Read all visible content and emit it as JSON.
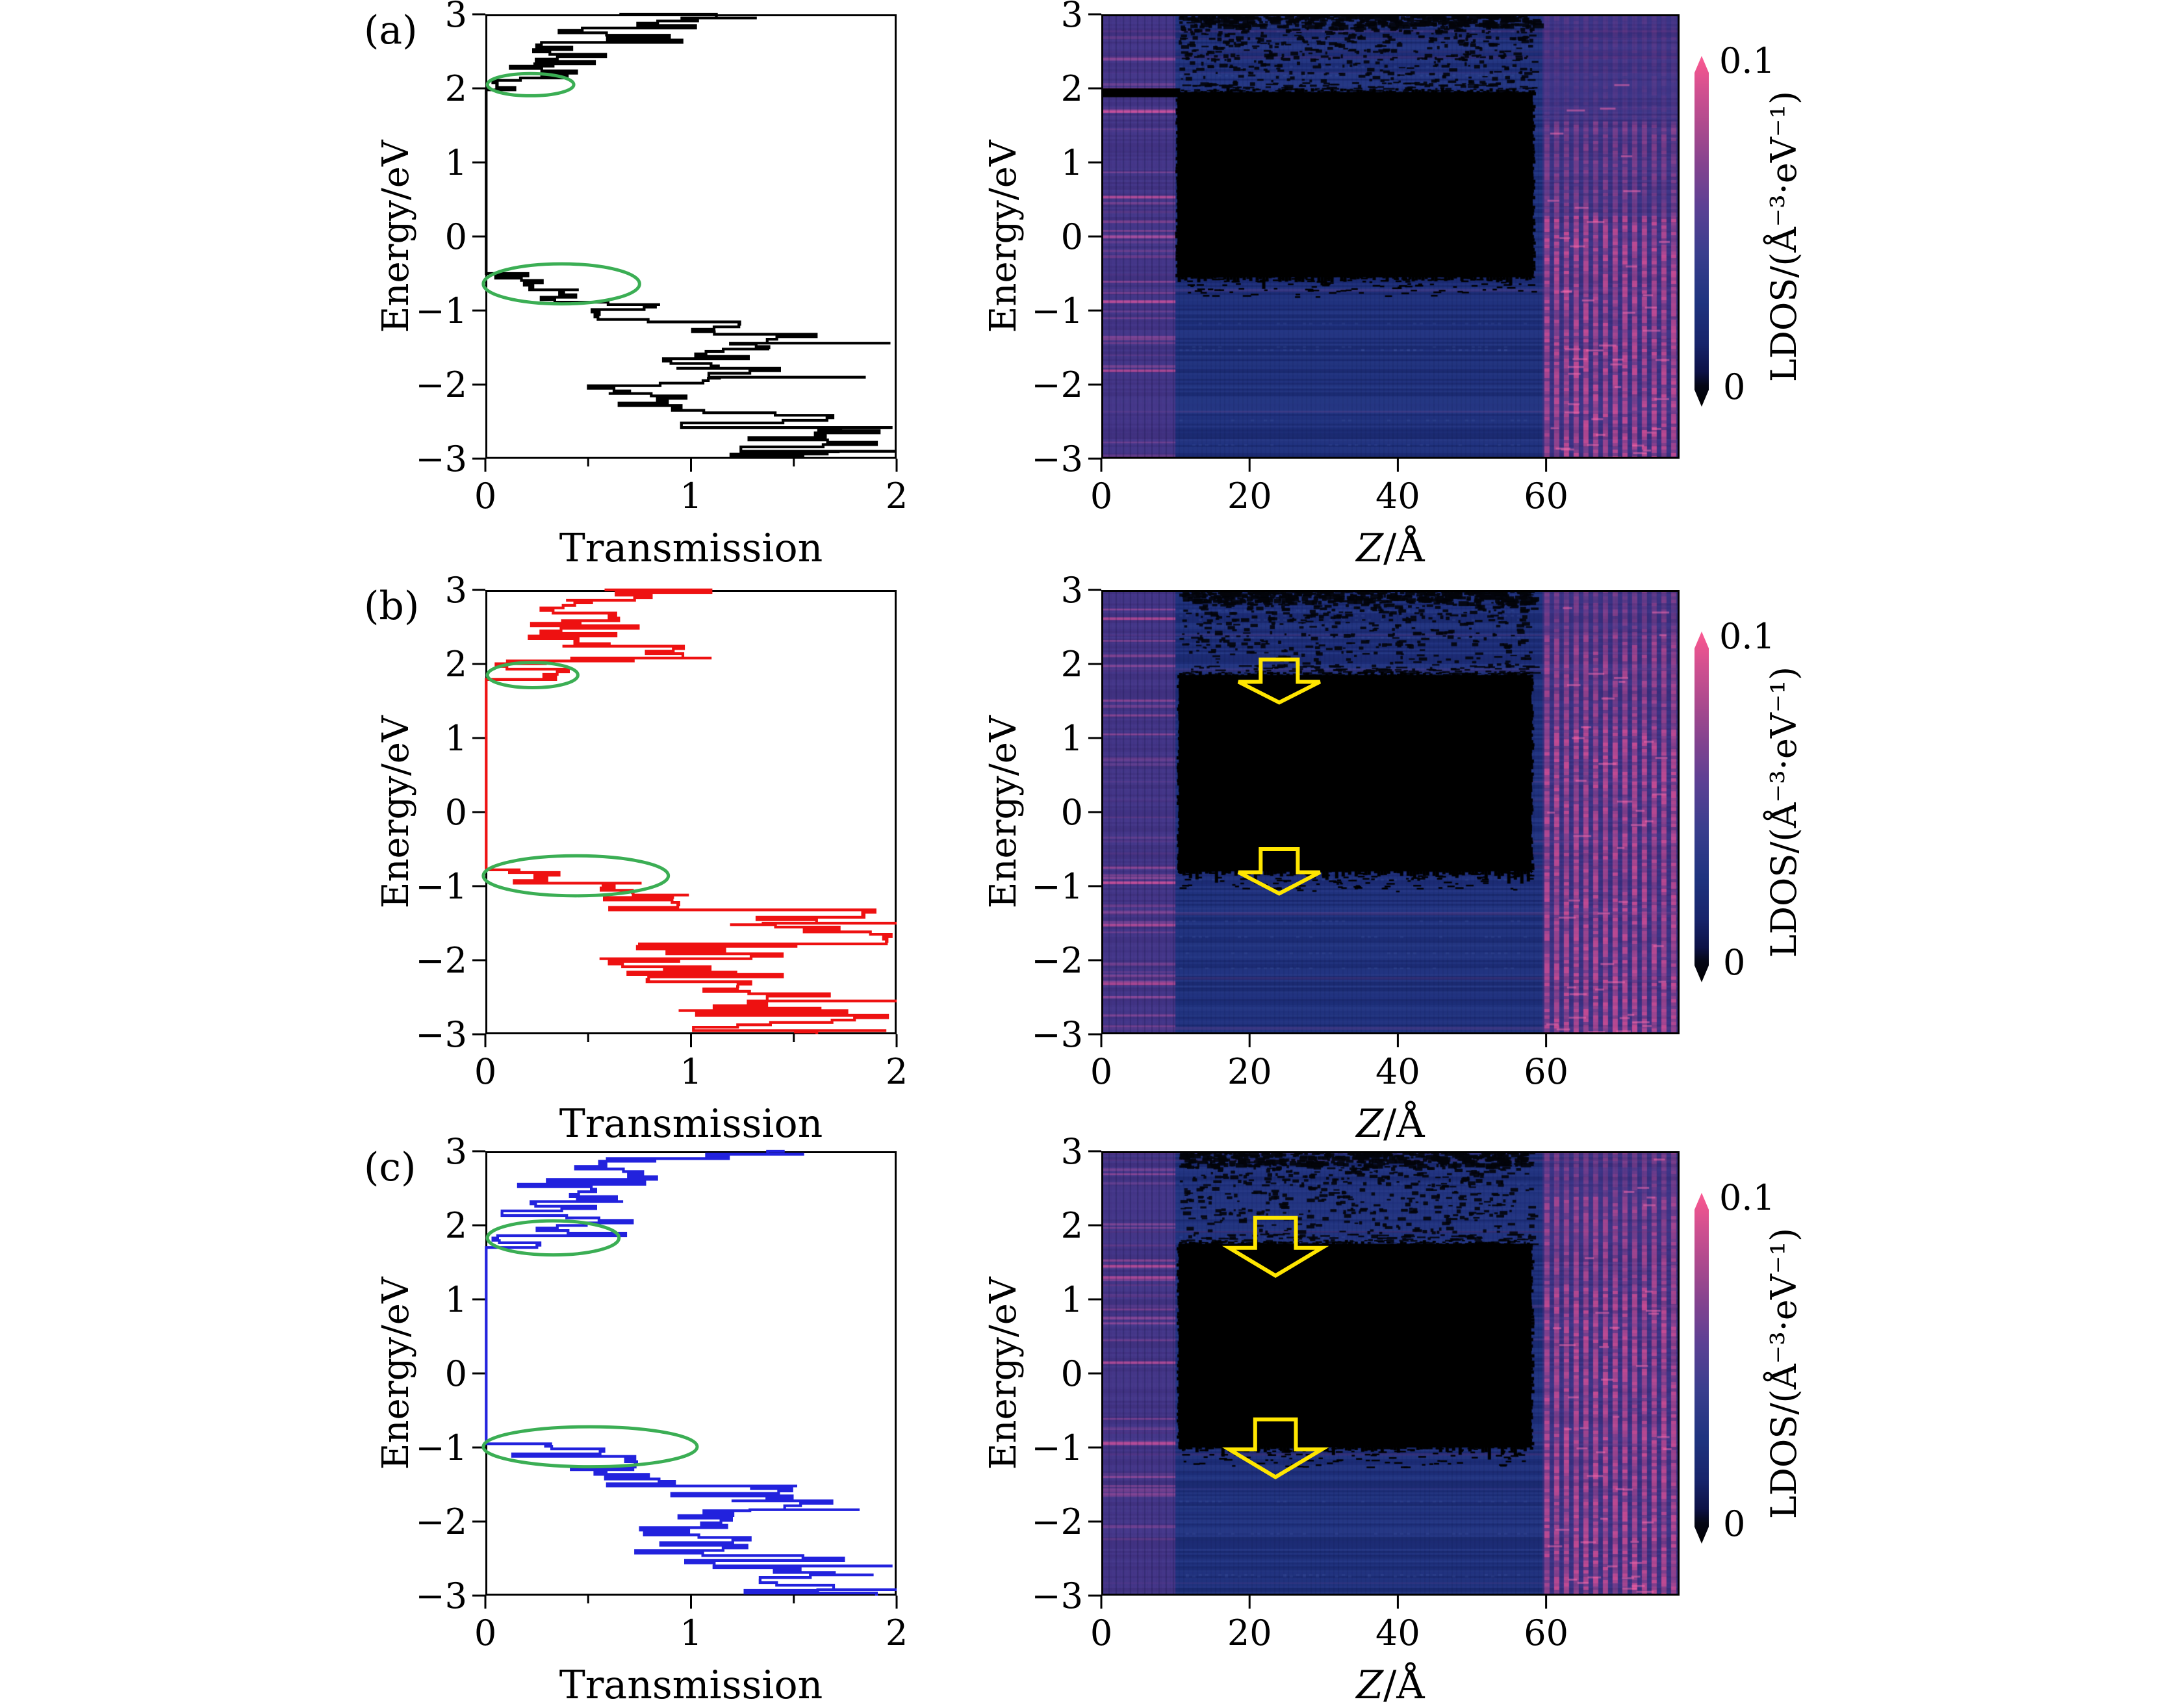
{
  "panel_labels": [
    "(a)",
    "(b)",
    "(c)"
  ],
  "colorbar": {
    "max": "0.1",
    "min": "0",
    "label": "LDOS/(Å⁻³·eV⁻¹)"
  },
  "colors": {
    "curve_black": "#000000",
    "curve_red": "#ee1111",
    "curve_blue": "#2222dd",
    "ellipse_green": "#3bae54",
    "arrow_yellow": "#ffe600",
    "heat_base": "#1e2f7b",
    "heat_dark": "#0a1148",
    "heat_light": "#5a78c8",
    "heat_pink": "#d9559b",
    "heat_pink_bright": "#ef6aa8",
    "heat_purple": "#7c4a97",
    "cbar_stops": [
      [
        "#000000",
        0
      ],
      [
        "#050716",
        6
      ],
      [
        "#0d1247",
        10
      ],
      [
        "#17246b",
        18
      ],
      [
        "#1f3480",
        30
      ],
      [
        "#3a3e8e",
        44
      ],
      [
        "#5c4094",
        57
      ],
      [
        "#84438f",
        69
      ],
      [
        "#ad4a8e",
        80
      ],
      [
        "#d15090",
        90
      ],
      [
        "#ef558f",
        97
      ],
      [
        "#fb5c95",
        100
      ]
    ]
  },
  "chart_data": [
    {
      "id": "transmission-a",
      "type": "line",
      "color": "#000000",
      "seed": 101,
      "xlabel": "Transmission",
      "ylabel": "Energy/eV",
      "xlim": [
        0,
        2
      ],
      "ylim": [
        -3,
        3
      ],
      "xticks": [
        0,
        1,
        2
      ],
      "minor_xticks": [
        0.5,
        1.5
      ],
      "yticks": [
        3,
        2,
        1,
        0,
        -1,
        -2,
        -3
      ],
      "segments": [
        {
          "e": [
            3.0,
            2.88
          ],
          "t": [
            0.55,
            1.3
          ]
        },
        {
          "e": [
            2.88,
            2.62
          ],
          "t": [
            0.3,
            1.05
          ]
        },
        {
          "e": [
            2.62,
            2.3
          ],
          "t": [
            0.22,
            0.7
          ]
        },
        {
          "e": [
            2.3,
            2.14
          ],
          "t": [
            0.1,
            0.5
          ]
        },
        {
          "e": [
            2.14,
            1.98
          ],
          "t": [
            0.02,
            0.26
          ]
        },
        {
          "e": [
            1.98,
            -0.5
          ],
          "t": [
            0.004,
            0.004
          ]
        },
        {
          "e": [
            -0.5,
            -0.72
          ],
          "t": [
            0.02,
            0.38
          ]
        },
        {
          "e": [
            -0.72,
            -0.92
          ],
          "t": [
            0.25,
            0.66
          ]
        },
        {
          "e": [
            -0.92,
            -1.12
          ],
          "t": [
            0.4,
            0.9
          ]
        },
        {
          "e": [
            -1.12,
            -1.32
          ],
          "t": [
            0.6,
            1.25
          ]
        },
        {
          "e": [
            -1.32,
            -1.52
          ],
          "t": [
            0.9,
            1.62
          ]
        },
        {
          "e": [
            -1.52,
            -1.78
          ],
          "t": [
            0.85,
            1.45
          ]
        },
        {
          "e": [
            -1.78,
            -1.98
          ],
          "t": [
            0.9,
            1.55
          ]
        },
        {
          "e": [
            -1.98,
            -2.12
          ],
          "t": [
            0.45,
            1.1
          ]
        },
        {
          "e": [
            -2.12,
            -2.38
          ],
          "t": [
            0.55,
            1.18
          ]
        },
        {
          "e": [
            -2.38,
            -2.62
          ],
          "t": [
            0.95,
            1.75
          ]
        },
        {
          "e": [
            -2.62,
            -3.0
          ],
          "t": [
            1.15,
            2.0
          ]
        }
      ],
      "spikes": [
        {
          "e": 2.95,
          "t": 1.32
        },
        {
          "e": -1.44,
          "t": 1.97
        },
        {
          "e": -1.9,
          "t": 1.85
        },
        {
          "e": -2.58,
          "t": 1.98
        },
        {
          "e": -2.9,
          "t": 2.0
        }
      ],
      "ellipses": [
        {
          "cx": 0.22,
          "cy": 2.05,
          "rx": 0.21,
          "ry": 0.15
        },
        {
          "cx": 0.37,
          "cy": -0.64,
          "rx": 0.38,
          "ry": 0.27
        }
      ]
    },
    {
      "id": "ldos-a",
      "type": "heatmap",
      "seed": 7,
      "xlabel_var": "Z",
      "xlabel_unit": "/Å",
      "ylabel": "Energy/eV",
      "xlim": [
        0,
        78
      ],
      "ylim": [
        -3,
        3
      ],
      "xticks": [
        0,
        20,
        40,
        60
      ],
      "yticks": [
        3,
        2,
        1,
        0,
        -1,
        -2,
        -3
      ],
      "value_label": "LDOS",
      "value_range": [
        0,
        0.1
      ],
      "left_band_z": [
        0,
        10
      ],
      "right_band_z": [
        59.5,
        78
      ],
      "gap_region": {
        "z": [
          10.3,
          58.2
        ],
        "e_top": 1.95,
        "e_bottom": -0.55
      },
      "left_strip_e": [
        1.88,
        2.0
      ],
      "right_profile": "bottom",
      "speckle_bias": 1.6,
      "arrows": []
    },
    {
      "id": "transmission-b",
      "type": "line",
      "color": "#ee1111",
      "seed": 202,
      "xlabel": "Transmission",
      "ylabel": "Energy/eV",
      "xlim": [
        0,
        2
      ],
      "ylim": [
        -3,
        3
      ],
      "xticks": [
        0,
        1,
        2
      ],
      "minor_xticks": [
        0.5,
        1.5
      ],
      "yticks": [
        3,
        2,
        1,
        0,
        -1,
        -2,
        -3
      ],
      "segments": [
        {
          "e": [
            3.0,
            2.86
          ],
          "t": [
            0.5,
            1.12
          ]
        },
        {
          "e": [
            2.86,
            2.55
          ],
          "t": [
            0.2,
            0.85
          ]
        },
        {
          "e": [
            2.55,
            2.24
          ],
          "t": [
            0.15,
            0.78
          ]
        },
        {
          "e": [
            2.24,
            2.04
          ],
          "t": [
            0.3,
            1.05
          ]
        },
        {
          "e": [
            2.04,
            1.93
          ],
          "t": [
            0.02,
            0.3
          ]
        },
        {
          "e": [
            1.93,
            1.79
          ],
          "t": [
            0.05,
            0.42
          ]
        },
        {
          "e": [
            1.79,
            -0.78
          ],
          "t": [
            0.004,
            0.004
          ]
        },
        {
          "e": [
            -0.78,
            -0.96
          ],
          "t": [
            0.02,
            0.55
          ]
        },
        {
          "e": [
            -0.96,
            -1.12
          ],
          "t": [
            0.3,
            0.78
          ]
        },
        {
          "e": [
            -1.12,
            -1.32
          ],
          "t": [
            0.55,
            1.18
          ]
        },
        {
          "e": [
            -1.32,
            -1.52
          ],
          "t": [
            1.0,
            1.9
          ]
        },
        {
          "e": [
            -1.52,
            -1.78
          ],
          "t": [
            1.1,
            1.98
          ]
        },
        {
          "e": [
            -1.78,
            -1.98
          ],
          "t": [
            0.7,
            1.8
          ]
        },
        {
          "e": [
            -1.98,
            -2.16
          ],
          "t": [
            0.38,
            1.15
          ]
        },
        {
          "e": [
            -2.16,
            -2.42
          ],
          "t": [
            0.65,
            1.45
          ]
        },
        {
          "e": [
            -2.42,
            -2.68
          ],
          "t": [
            1.0,
            1.85
          ]
        },
        {
          "e": [
            -2.68,
            -3.0
          ],
          "t": [
            0.9,
            1.98
          ]
        }
      ],
      "spikes": [
        {
          "e": 2.08,
          "t": 1.1
        },
        {
          "e": -1.5,
          "t": 2.0
        },
        {
          "e": -2.55,
          "t": 2.0
        },
        {
          "e": -2.95,
          "t": 1.95
        }
      ],
      "ellipses": [
        {
          "cx": 0.23,
          "cy": 1.85,
          "rx": 0.22,
          "ry": 0.17
        },
        {
          "cx": 0.44,
          "cy": -0.86,
          "rx": 0.45,
          "ry": 0.27
        }
      ]
    },
    {
      "id": "ldos-b",
      "type": "heatmap",
      "seed": 8,
      "xlabel_var": "Z",
      "xlabel_unit": "/Å",
      "ylabel": "Energy/eV",
      "xlim": [
        0,
        78
      ],
      "ylim": [
        -3,
        3
      ],
      "xticks": [
        0,
        20,
        40,
        60
      ],
      "yticks": [
        3,
        2,
        1,
        0,
        -1,
        -2,
        -3
      ],
      "value_label": "LDOS",
      "value_range": [
        0,
        0.1
      ],
      "left_band_z": [
        0,
        10
      ],
      "right_band_z": [
        59.5,
        78
      ],
      "gap_region": {
        "z": [
          10.5,
          58
        ],
        "e_top": 1.85,
        "e_bottom": -0.8
      },
      "left_strip_e": null,
      "right_profile": "full",
      "speckle_bias": 2.2,
      "arrows": [
        {
          "cz": 24,
          "e_top": 2.06,
          "e_bottom": 1.48,
          "head_w": 11.0,
          "shaft_w": 5.0
        },
        {
          "cz": 24,
          "e_top": -0.5,
          "e_bottom": -1.1,
          "head_w": 11.0,
          "shaft_w": 5.0
        }
      ]
    },
    {
      "id": "transmission-c",
      "type": "line",
      "color": "#2222dd",
      "seed": 303,
      "xlabel": "Transmission",
      "ylabel": "Energy/eV",
      "xlim": [
        0,
        2
      ],
      "ylim": [
        -3,
        3
      ],
      "xticks": [
        0,
        1,
        2
      ],
      "minor_xticks": [
        0.5,
        1.5
      ],
      "yticks": [
        3,
        2,
        1,
        0,
        -1,
        -2,
        -3
      ],
      "segments": [
        {
          "e": [
            3.0,
            2.9
          ],
          "t": [
            0.85,
            1.5
          ]
        },
        {
          "e": [
            2.9,
            2.62
          ],
          "t": [
            0.3,
            1.1
          ]
        },
        {
          "e": [
            2.62,
            2.32
          ],
          "t": [
            0.15,
            0.82
          ]
        },
        {
          "e": [
            2.32,
            2.1
          ],
          "t": [
            0.05,
            0.7
          ]
        },
        {
          "e": [
            2.1,
            1.86
          ],
          "t": [
            0.1,
            0.72
          ]
        },
        {
          "e": [
            1.86,
            1.7
          ],
          "t": [
            0.02,
            0.3
          ]
        },
        {
          "e": [
            1.7,
            -0.95
          ],
          "t": [
            0.004,
            0.004
          ]
        },
        {
          "e": [
            -0.95,
            -1.12
          ],
          "t": [
            0.02,
            0.72
          ]
        },
        {
          "e": [
            -1.12,
            -1.3
          ],
          "t": [
            0.3,
            0.85
          ]
        },
        {
          "e": [
            -1.3,
            -1.52
          ],
          "t": [
            0.5,
            1.05
          ]
        },
        {
          "e": [
            -1.52,
            -1.72
          ],
          "t": [
            0.9,
            1.6
          ]
        },
        {
          "e": [
            -1.72,
            -1.92
          ],
          "t": [
            1.0,
            1.78
          ]
        },
        {
          "e": [
            -1.92,
            -2.18
          ],
          "t": [
            0.5,
            1.2
          ]
        },
        {
          "e": [
            -2.18,
            -2.46
          ],
          "t": [
            0.6,
            1.3
          ]
        },
        {
          "e": [
            -2.46,
            -2.72
          ],
          "t": [
            0.95,
            1.75
          ]
        },
        {
          "e": [
            -2.72,
            -3.0
          ],
          "t": [
            1.1,
            2.0
          ]
        }
      ],
      "spikes": [
        {
          "e": 2.96,
          "t": 1.55
        },
        {
          "e": -1.84,
          "t": 1.82
        },
        {
          "e": -2.6,
          "t": 1.98
        },
        {
          "e": -2.92,
          "t": 2.0
        }
      ],
      "ellipses": [
        {
          "cx": 0.33,
          "cy": 1.83,
          "rx": 0.32,
          "ry": 0.23
        },
        {
          "cx": 0.51,
          "cy": -0.99,
          "rx": 0.52,
          "ry": 0.27
        }
      ]
    },
    {
      "id": "ldos-c",
      "type": "heatmap",
      "seed": 9,
      "xlabel_var": "Z",
      "xlabel_unit": "/Å",
      "ylabel": "Energy/eV",
      "xlim": [
        0,
        78
      ],
      "ylim": [
        -3,
        3
      ],
      "xticks": [
        0,
        20,
        40,
        60
      ],
      "yticks": [
        3,
        2,
        1,
        0,
        -1,
        -2,
        -3
      ],
      "value_label": "LDOS",
      "value_range": [
        0,
        0.1
      ],
      "left_band_z": [
        0,
        10
      ],
      "right_band_z": [
        59.5,
        78
      ],
      "gap_region": {
        "z": [
          10.5,
          58
        ],
        "e_top": 1.75,
        "e_bottom": -1.0
      },
      "left_strip_e": null,
      "right_profile": "full",
      "speckle_bias": 2.0,
      "arrows": [
        {
          "cz": 23.5,
          "e_top": 2.1,
          "e_bottom": 1.32,
          "head_w": 12.5,
          "shaft_w": 5.5
        },
        {
          "cz": 23.5,
          "e_top": -0.62,
          "e_bottom": -1.4,
          "head_w": 12.5,
          "shaft_w": 5.5
        }
      ]
    }
  ]
}
